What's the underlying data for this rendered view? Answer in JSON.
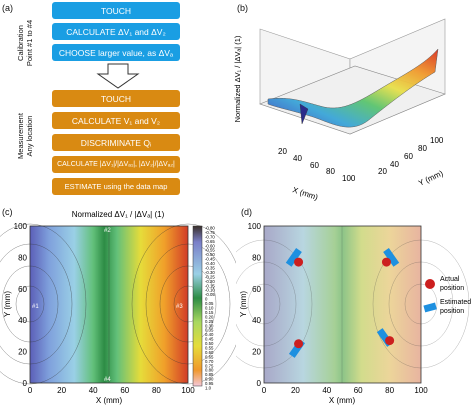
{
  "panels": {
    "a": "(a)",
    "b": "(b)",
    "c": "(c)",
    "d": "(d)"
  },
  "flow": {
    "calibration_label_1": "Calibration",
    "calibration_label_2": "Point #1 to #4",
    "measurement_label_1": "Measurement",
    "measurement_label_2": "Any location",
    "blue_steps": [
      "TOUCH",
      "CALCULATE ΔV₁ and ΔV₂",
      "CHOOSE larger value, as ΔVₐ"
    ],
    "orange_steps": [
      "TOUCH",
      "CALCULATE V₁ and V₂",
      "DISCRIMINATE Qᵢ",
      "CALCULATE |ΔV₁|/|ΔVₐ₁|, |ΔV₂|/|ΔVₐ₂|",
      "ESTIMATE using the data map"
    ]
  },
  "surface_3d": {
    "zlabel": "Normalized ΔV₁ / |ΔVₐ| (1)",
    "xlabel": "X (mm)",
    "ylabel": "Y (mm)",
    "x_ticks": [
      "20",
      "40",
      "60",
      "80",
      "100"
    ],
    "y_ticks": [
      "20",
      "40",
      "60",
      "80",
      "100"
    ]
  },
  "contour": {
    "title": "Normalized ΔV₁ / |ΔVₐ| (1)",
    "xlabel": "X (mm)",
    "ylabel": "Y (mm)",
    "x_ticks": [
      "0",
      "20",
      "40",
      "60",
      "80",
      "100"
    ],
    "y_ticks": [
      "0",
      "20",
      "40",
      "60",
      "80",
      "100"
    ],
    "marker_labels": [
      "#1",
      "#2",
      "#3",
      "#4"
    ],
    "colorbar": [
      "-0.80",
      "-0.75",
      "-0.70",
      "-0.65",
      "-0.60",
      "-0.55",
      "-0.50",
      "-0.45",
      "-0.40",
      "-0.35",
      "-0.30",
      "-0.25",
      "-0.20",
      "-0.15",
      "-0.10",
      "-0.05",
      "0",
      "0.05",
      "0.10",
      "0.15",
      "0.20",
      "0.25",
      "0.30",
      "0.35",
      "0.40",
      "0.45",
      "0.50",
      "0.55",
      "0.60",
      "0.65",
      "0.70",
      "0.75",
      "0.80",
      "0.85",
      "0.90",
      "0.95",
      "1.0"
    ]
  },
  "estimate": {
    "xlabel": "X (mm)",
    "ylabel": "Y (mm)",
    "x_ticks": [
      "0",
      "20",
      "40",
      "60",
      "80",
      "100"
    ],
    "y_ticks": [
      "0",
      "20",
      "40",
      "60",
      "80",
      "100"
    ],
    "legend_actual": "Actual position",
    "legend_estimated": "Estimated position",
    "colors": {
      "actual": "#cc1f1f",
      "estimated": "#1e90e0"
    }
  },
  "chart_data": [
    {
      "type": "heatmap",
      "panel": "c",
      "title": "Normalized ΔV₁ / |ΔVₐ| (1)",
      "xlabel": "X (mm)",
      "ylabel": "Y (mm)",
      "xlim": [
        0,
        100
      ],
      "ylim": [
        0,
        100
      ],
      "colorbar_range": [
        -0.8,
        1.0
      ]
    },
    {
      "type": "scatter",
      "panel": "d",
      "xlabel": "X (mm)",
      "ylabel": "Y (mm)",
      "xlim": [
        0,
        100
      ],
      "ylim": [
        0,
        100
      ],
      "series": [
        {
          "name": "Actual position",
          "x": [
            22,
            78,
            22,
            80
          ],
          "y": [
            77,
            77,
            25,
            27
          ]
        },
        {
          "name": "Estimated position",
          "x": [
            19,
            81,
            21,
            77
          ],
          "y": [
            80,
            80,
            22,
            29
          ]
        }
      ]
    }
  ]
}
